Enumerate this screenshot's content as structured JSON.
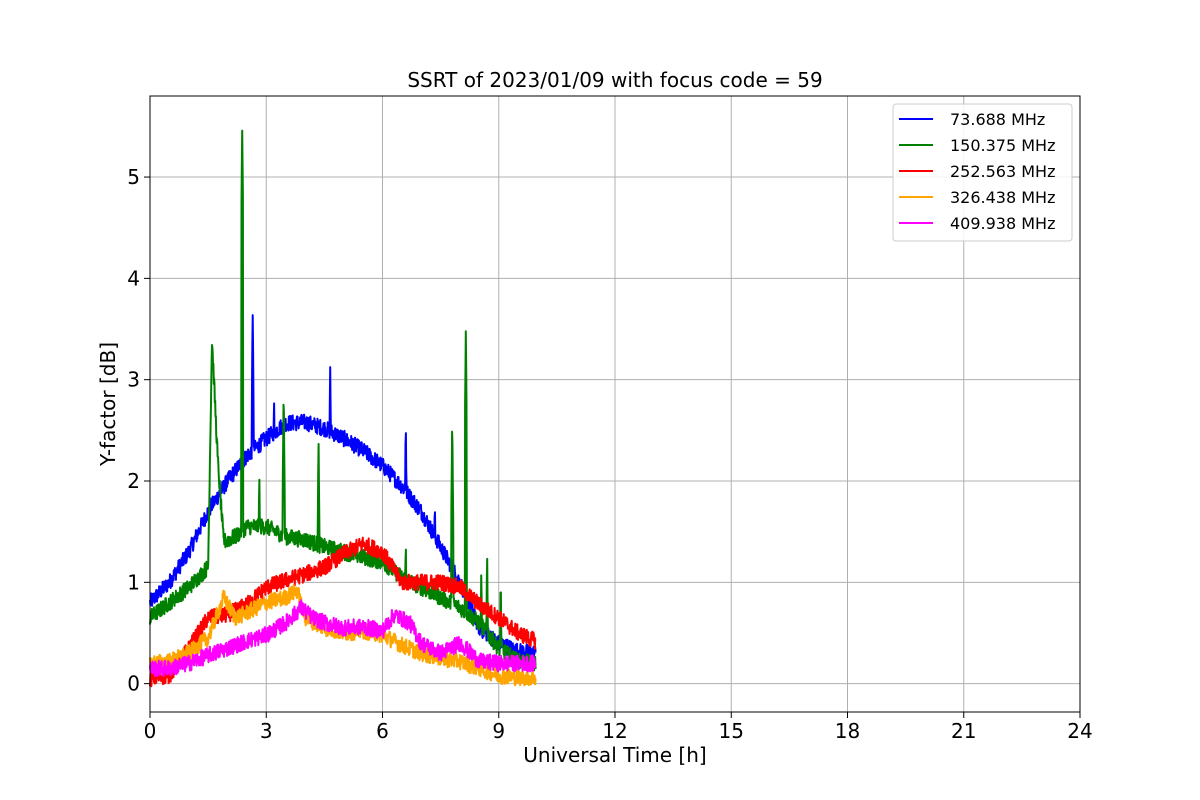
{
  "chart_data": {
    "type": "line",
    "title": "SSRT of 2023/01/09 with focus code = 59",
    "xlabel": "Universal Time [h]",
    "ylabel": "Y-factor [dB]",
    "xlim": [
      0,
      24
    ],
    "ylim": [
      -0.28,
      5.8
    ],
    "xticks": [
      "0",
      "3",
      "6",
      "9",
      "12",
      "15",
      "18",
      "21",
      "24"
    ],
    "yticks": [
      "0",
      "1",
      "2",
      "3",
      "4",
      "5"
    ],
    "grid": true,
    "legend_position": "top-right",
    "series": [
      {
        "name": " 73.688 MHz",
        "color": "#0000ff",
        "x": [
          0,
          0.5,
          1,
          1.5,
          2,
          2.5,
          3,
          3.5,
          4,
          4.5,
          5,
          5.5,
          6,
          6.5,
          7,
          7.5,
          8,
          8.5,
          9,
          9.5,
          9.95
        ],
        "y": [
          0.8,
          1.0,
          1.3,
          1.7,
          2.0,
          2.25,
          2.42,
          2.57,
          2.58,
          2.52,
          2.42,
          2.3,
          2.15,
          1.95,
          1.7,
          1.35,
          1.0,
          0.55,
          0.4,
          0.32,
          0.3
        ]
      },
      {
        "name": "150.375 MHz",
        "color": "#008000",
        "x": [
          0,
          0.5,
          1,
          1.5,
          1.6,
          1.75,
          1.9,
          2.2,
          2.5,
          3,
          3.5,
          4,
          4.5,
          5,
          5.5,
          6,
          6.5,
          7,
          7.5,
          8,
          8.5,
          9,
          9.5,
          9.95
        ],
        "y": [
          0.65,
          0.8,
          0.95,
          1.15,
          3.4,
          2.2,
          1.4,
          1.45,
          1.55,
          1.55,
          1.45,
          1.42,
          1.35,
          1.3,
          1.25,
          1.2,
          1.05,
          0.95,
          0.85,
          0.75,
          0.6,
          0.35,
          0.22,
          0.2
        ]
      },
      {
        "name": "252.563 MHz",
        "color": "#ff0000",
        "x": [
          0,
          0.5,
          1,
          1.5,
          2,
          2.5,
          3,
          3.5,
          4,
          4.5,
          5,
          5.5,
          6,
          6.5,
          7,
          7.5,
          8,
          8.5,
          9,
          9.5,
          9.95
        ],
        "y": [
          0.05,
          0.08,
          0.35,
          0.65,
          0.68,
          0.78,
          0.95,
          1.02,
          1.08,
          1.15,
          1.28,
          1.38,
          1.3,
          1.0,
          1.0,
          1.0,
          0.95,
          0.78,
          0.65,
          0.5,
          0.42
        ]
      },
      {
        "name": "326.438 MHz",
        "color": "#ffa500",
        "x": [
          0,
          0.5,
          1,
          1.5,
          1.9,
          2.2,
          2.5,
          3,
          3.5,
          3.8,
          4,
          4.5,
          5,
          5.5,
          6,
          6.5,
          7,
          7.5,
          8,
          8.5,
          9,
          9.5,
          9.95
        ],
        "y": [
          0.2,
          0.22,
          0.3,
          0.45,
          0.85,
          0.65,
          0.7,
          0.8,
          0.85,
          0.92,
          0.65,
          0.55,
          0.5,
          0.52,
          0.48,
          0.38,
          0.3,
          0.25,
          0.22,
          0.15,
          0.08,
          0.06,
          0.06
        ]
      },
      {
        "name": "409.938 MHz",
        "color": "#ff00ff",
        "x": [
          0,
          0.5,
          1,
          1.5,
          2,
          2.5,
          3,
          3.5,
          3.9,
          4.2,
          4.5,
          5,
          5.5,
          6,
          6.3,
          6.7,
          7,
          7.5,
          8,
          8.5,
          9,
          9.5,
          9.95
        ],
        "y": [
          0.15,
          0.15,
          0.2,
          0.28,
          0.35,
          0.42,
          0.48,
          0.6,
          0.75,
          0.65,
          0.6,
          0.55,
          0.56,
          0.52,
          0.68,
          0.6,
          0.4,
          0.3,
          0.4,
          0.22,
          0.2,
          0.2,
          0.2
        ]
      }
    ],
    "spikes": [
      {
        "series": 1,
        "x": 2.38,
        "y": 5.5
      },
      {
        "series": 1,
        "x": 8.15,
        "y": 3.48
      },
      {
        "series": 1,
        "x": 7.8,
        "y": 2.6
      },
      {
        "series": 1,
        "x": 3.45,
        "y": 2.9
      },
      {
        "series": 1,
        "x": 4.35,
        "y": 2.4
      },
      {
        "series": 1,
        "x": 8.7,
        "y": 1.3
      },
      {
        "series": 1,
        "x": 9.05,
        "y": 1.08
      },
      {
        "series": 1,
        "x": 8.55,
        "y": 1.15
      },
      {
        "series": 1,
        "x": 2.82,
        "y": 2.1
      },
      {
        "series": 1,
        "x": 6.6,
        "y": 1.45
      },
      {
        "series": 0,
        "x": 2.65,
        "y": 3.65
      },
      {
        "series": 0,
        "x": 4.65,
        "y": 3.15
      },
      {
        "series": 0,
        "x": 6.6,
        "y": 2.6
      },
      {
        "series": 0,
        "x": 3.2,
        "y": 2.85
      },
      {
        "series": 0,
        "x": 7.35,
        "y": 1.85
      }
    ]
  }
}
